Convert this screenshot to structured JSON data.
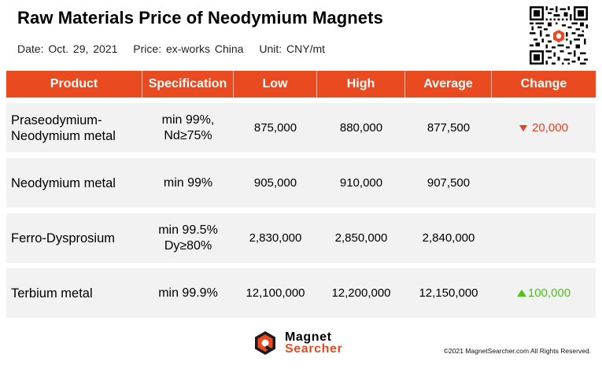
{
  "header": {
    "title": "Raw Materials Price of Neodymium Magnets",
    "date": "Date: Oct. 29, 2021",
    "price": "Price: ex-works China",
    "unit": "Unit: CNY/mt"
  },
  "table": {
    "columns": [
      "Product",
      "Specification",
      "Low",
      "High",
      "Average",
      "Change"
    ],
    "rows": [
      {
        "product_line1": "Praseodymium-",
        "product_line2": "Neodymium metal",
        "spec_line1": "min 99%,",
        "spec_line2": "Nd≥75%",
        "low": "875,000",
        "high": "880,000",
        "average": "877,500",
        "change": "20,000",
        "change_direction": "down"
      },
      {
        "product_line1": "Neodymium metal",
        "product_line2": "",
        "spec_line1": "min 99%",
        "spec_line2": "",
        "low": "905,000",
        "high": "910,000",
        "average": "907,500",
        "change": "",
        "change_direction": "none"
      },
      {
        "product_line1": "Ferro-Dysprosium",
        "product_line2": "",
        "spec_line1": "min 99.5%",
        "spec_line2": "Dy≥80%",
        "low": "2,830,000",
        "high": "2,850,000",
        "average": "2,840,000",
        "change": "",
        "change_direction": "none"
      },
      {
        "product_line1": "Terbium metal",
        "product_line2": "",
        "spec_line1": "min 99.9%",
        "spec_line2": "",
        "low": "12,100,000",
        "high": "12,200,000",
        "average": "12,150,000",
        "change": "100,000",
        "change_direction": "up"
      }
    ]
  },
  "footer": {
    "logo_line1": "Magnet",
    "logo_line2": "Searcher",
    "copyright": "©2021 MagnetSearcher.com All Rights Reserved."
  },
  "colors": {
    "accent": "#ea4a1f",
    "down": "#e8401c",
    "up": "#4cc21c",
    "row_bg": "#f2f2f2"
  },
  "icons": [
    "qr-code-icon",
    "triangle-down-icon",
    "triangle-up-icon",
    "magnet-searcher-logo-icon"
  ]
}
